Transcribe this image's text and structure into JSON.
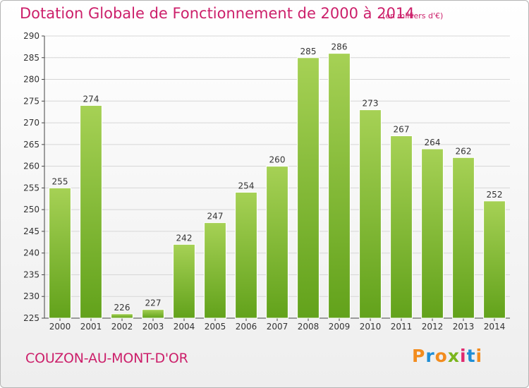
{
  "header": {
    "title": "Dotation Globale de Fonctionnement de 2000 à 2014",
    "subtitle": "(en milliers d'€)"
  },
  "footer": {
    "commune": "COUZON-AU-MONT-D'OR",
    "logo_text": "Proxiti",
    "logo_colors": [
      "#f28c1e",
      "#1e8ed6",
      "#f28c1e",
      "#7ab51d",
      "#e02a6f",
      "#1e8ed6",
      "#f28c1e"
    ]
  },
  "chart_data": {
    "type": "bar",
    "title": "Dotation Globale de Fonctionnement de 2000 à 2014",
    "subtitle": "(en milliers d'€)",
    "categories": [
      "2000",
      "2001",
      "2002",
      "2003",
      "2004",
      "2005",
      "2006",
      "2007",
      "2008",
      "2009",
      "2010",
      "2011",
      "2012",
      "2013",
      "2014"
    ],
    "values": [
      255,
      274,
      226,
      227,
      242,
      247,
      254,
      260,
      285,
      286,
      273,
      267,
      264,
      262,
      252
    ],
    "xlabel": "",
    "ylabel": "",
    "ylim": [
      225,
      290
    ],
    "yticks": [
      225,
      230,
      235,
      240,
      245,
      250,
      255,
      260,
      265,
      270,
      275,
      280,
      285,
      290
    ],
    "grid": true,
    "legend": "none",
    "bar_color_top": "#a6d155",
    "bar_color_bottom": "#62a21b",
    "label_color": "#333333"
  }
}
